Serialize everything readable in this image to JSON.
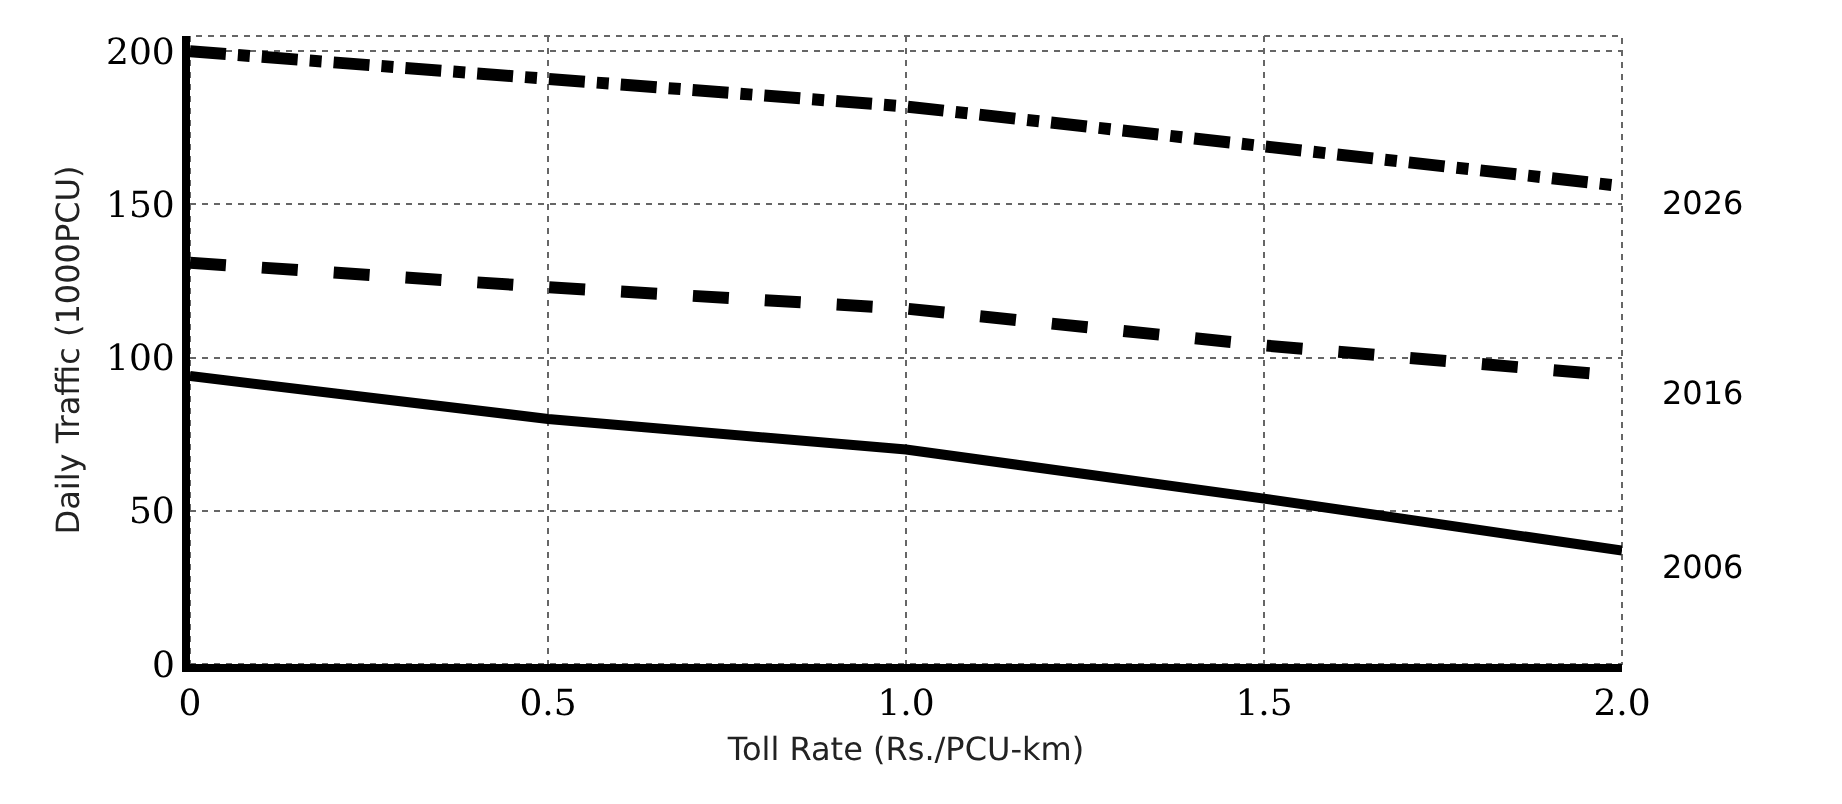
{
  "chart_data": {
    "type": "line",
    "xlabel": "Toll Rate (Rs./PCU-km)",
    "ylabel": "Daily Traffic (1000PCU)",
    "x": [
      0,
      0.5,
      1,
      1.5,
      2
    ],
    "series": [
      {
        "name": "2006",
        "color": "#000000",
        "line_style": "solid",
        "values": [
          94,
          80,
          70,
          54,
          37
        ]
      },
      {
        "name": "2016",
        "color": "#000000",
        "line_style": "dashed",
        "values": [
          131,
          123,
          116,
          104,
          94
        ]
      },
      {
        "name": "2026",
        "color": "#000000",
        "line_style": "dashdot",
        "values": [
          200,
          191,
          182,
          169,
          156
        ]
      }
    ],
    "xlim": [
      0,
      2
    ],
    "xticks": [
      0,
      {
        "value": 0.5,
        "label": "0.5"
      },
      {
        "value": 1,
        "label": "1.0"
      },
      {
        "value": 1.5,
        "label": "1.5"
      },
      {
        "value": 2,
        "label": "2.0"
      }
    ],
    "ylim": [
      0,
      205
    ],
    "yticks": [
      0,
      50,
      100,
      150,
      200
    ],
    "grid": true,
    "legend": false,
    "marker": "none"
  }
}
